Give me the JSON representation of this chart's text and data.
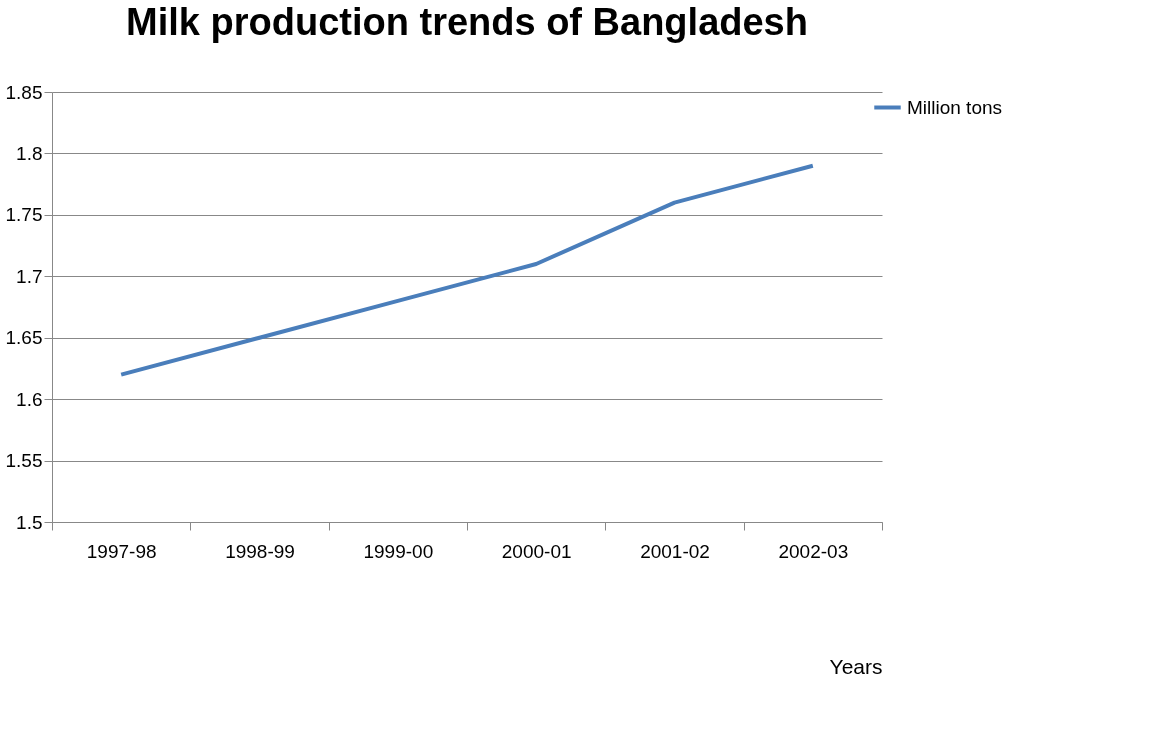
{
  "chart_data": {
    "type": "line",
    "title": "Milk production trends of Bangladesh",
    "xlabel": "Years",
    "categories": [
      "1997-98",
      "1998-99",
      "1999-00",
      "2000-01",
      "2001-02",
      "2002-03"
    ],
    "series": [
      {
        "name": "Million tons",
        "color": "#4a7ebb",
        "values": [
          1.62,
          1.65,
          1.68,
          1.71,
          1.76,
          1.79
        ]
      }
    ],
    "ylim": [
      1.5,
      1.85
    ],
    "yticks": [
      1.5,
      1.55,
      1.6,
      1.65,
      1.7,
      1.75,
      1.8,
      1.85
    ],
    "grid": "y",
    "legend": "right",
    "marker": "none",
    "line_style": "solid"
  }
}
